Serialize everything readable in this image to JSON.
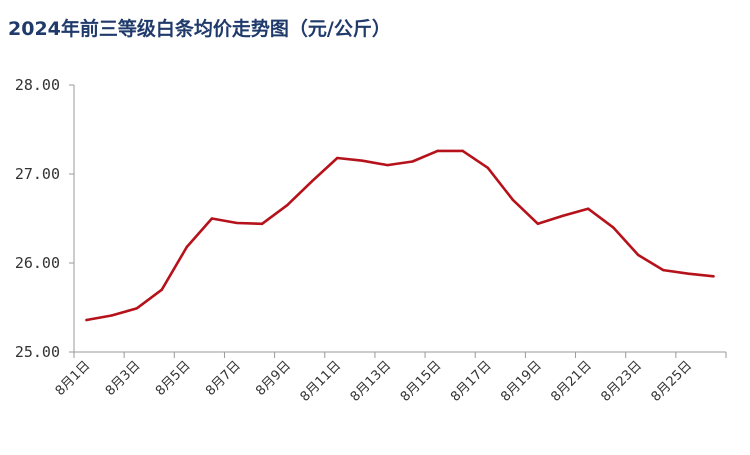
{
  "chart_data": {
    "type": "line",
    "title": "2024年前三等级白条均价走势图（元/公斤）",
    "xlabel": "",
    "ylabel": "",
    "ylim": [
      25.0,
      28.0
    ],
    "yticks": [
      "25.00",
      "26.00",
      "27.00",
      "28.00"
    ],
    "grid": false,
    "legend": "none",
    "line_color": "#b5121b",
    "categories": [
      "8月1日",
      "8月2日",
      "8月3日",
      "8月4日",
      "8月5日",
      "8月6日",
      "8月7日",
      "8月8日",
      "8月9日",
      "8月10日",
      "8月11日",
      "8月12日",
      "8月13日",
      "8月14日",
      "8月15日",
      "8月16日",
      "8月17日",
      "8月18日",
      "8月19日",
      "8月20日",
      "8月21日",
      "8月22日",
      "8月23日",
      "8月24日",
      "8月25日",
      "8月26日"
    ],
    "tick_labels": [
      "8月1日",
      "8月3日",
      "8月5日",
      "8月7日",
      "8月9日",
      "8月11日",
      "8月13日",
      "8月15日",
      "8月17日",
      "8月19日",
      "8月21日",
      "8月23日",
      "8月25日"
    ],
    "series": [
      {
        "values": [
          25.36,
          25.41,
          25.49,
          25.7,
          26.18,
          26.5,
          26.45,
          26.44,
          26.65,
          26.92,
          27.18,
          27.15,
          27.1,
          27.14,
          27.26,
          27.26,
          27.07,
          26.71,
          26.44,
          26.53,
          26.61,
          26.4,
          26.09,
          25.92,
          25.88,
          25.85
        ]
      }
    ]
  }
}
